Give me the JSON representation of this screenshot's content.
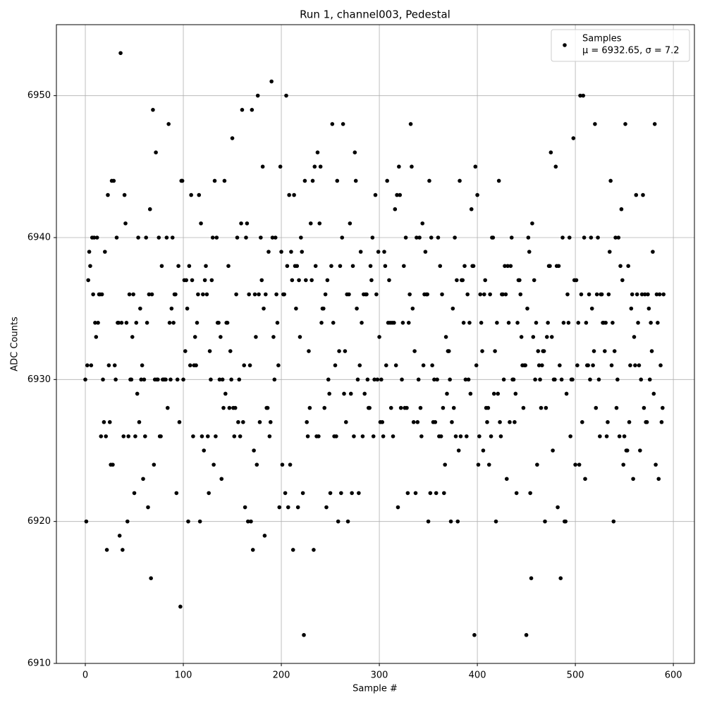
{
  "chart_data": {
    "type": "scatter",
    "title": "Run 1, channel003, Pedestal",
    "x_label": "Sample #",
    "y_label": "ADC Counts",
    "legend_stats": "μ = 6932.65, σ = 7.2",
    "legend_position": "upper right",
    "grid": true,
    "xlim": [
      -29.5,
      621.5
    ],
    "ylim": [
      6910,
      6955
    ],
    "xticks": [
      0,
      100,
      200,
      300,
      400,
      500,
      600
    ],
    "yticks": [
      6910,
      6920,
      6930,
      6940,
      6950
    ],
    "x": [
      0,
      1,
      2,
      3,
      4,
      5,
      6,
      7,
      8,
      9,
      10,
      11,
      12,
      13,
      14,
      15,
      16,
      17,
      18,
      19,
      20,
      21,
      22,
      23,
      24,
      25,
      26,
      27,
      28,
      29,
      30,
      31,
      32,
      33,
      34,
      35,
      36,
      37,
      38,
      39,
      40,
      41,
      42,
      43,
      44,
      45,
      46,
      47,
      48,
      49,
      50,
      51,
      52,
      53,
      54,
      55,
      56,
      57,
      58,
      59,
      60,
      61,
      62,
      63,
      64,
      65,
      66,
      67,
      68,
      69,
      70,
      71,
      72,
      73,
      74,
      75,
      76,
      77,
      78,
      79,
      80,
      81,
      82,
      83,
      84,
      85,
      86,
      87,
      88,
      89,
      90,
      91,
      92,
      93,
      94,
      95,
      96,
      97,
      98,
      99,
      100,
      101,
      102,
      103,
      104,
      105,
      106,
      107,
      108,
      109,
      110,
      111,
      112,
      113,
      114,
      115,
      116,
      117,
      118,
      119,
      120,
      121,
      122,
      123,
      124,
      125,
      126,
      127,
      128,
      129,
      130,
      131,
      132,
      133,
      134,
      135,
      136,
      137,
      138,
      139,
      140,
      141,
      142,
      143,
      144,
      145,
      146,
      147,
      148,
      149,
      150,
      151,
      152,
      153,
      154,
      155,
      156,
      157,
      158,
      159,
      160,
      161,
      162,
      163,
      164,
      165,
      166,
      167,
      168,
      169,
      170,
      171,
      172,
      173,
      174,
      175,
      176,
      177,
      178,
      179,
      180,
      181,
      182,
      183,
      184,
      185,
      186,
      187,
      188,
      189,
      190,
      191,
      192,
      193,
      194,
      195,
      196,
      197,
      198,
      199,
      200,
      201,
      202,
      203,
      204,
      205,
      206,
      207,
      208,
      209,
      210,
      211,
      212,
      213,
      214,
      215,
      216,
      217,
      218,
      219,
      220,
      221,
      222,
      223,
      224,
      225,
      226,
      227,
      228,
      229,
      230,
      231,
      232,
      233,
      234,
      235,
      236,
      237,
      238,
      239,
      240,
      241,
      242,
      243,
      244,
      245,
      246,
      247,
      248,
      249,
      250,
      251,
      252,
      253,
      254,
      255,
      256,
      257,
      258,
      259,
      260,
      261,
      262,
      263,
      264,
      265,
      266,
      267,
      268,
      269,
      270,
      271,
      272,
      273,
      274,
      275,
      276,
      277,
      278,
      279,
      280,
      281,
      282,
      283,
      284,
      285,
      286,
      287,
      288,
      289,
      290,
      291,
      292,
      293,
      294,
      295,
      296,
      297,
      298,
      299,
      300,
      301,
      302,
      303,
      304,
      305,
      306,
      307,
      308,
      309,
      310,
      311,
      312,
      313,
      314,
      315,
      316,
      317,
      318,
      319,
      320,
      321,
      322,
      323,
      324,
      325,
      326,
      327,
      328,
      329,
      330,
      331,
      332,
      333,
      334,
      335,
      336,
      337,
      338,
      339,
      340,
      341,
      342,
      343,
      344,
      345,
      346,
      347,
      348,
      349,
      350,
      351,
      352,
      353,
      354,
      355,
      356,
      357,
      358,
      359,
      360,
      361,
      362,
      363,
      364,
      365,
      366,
      367,
      368,
      369,
      370,
      371,
      372,
      373,
      374,
      375,
      376,
      377,
      378,
      379,
      380,
      381,
      382,
      383,
      384,
      385,
      386,
      387,
      388,
      389,
      390,
      391,
      392,
      393,
      394,
      395,
      396,
      397,
      398,
      399,
      400,
      401,
      402,
      403,
      404,
      405,
      406,
      407,
      408,
      409,
      410,
      411,
      412,
      413,
      414,
      415,
      416,
      417,
      418,
      419,
      420,
      421,
      422,
      423,
      424,
      425,
      426,
      427,
      428,
      429,
      430,
      431,
      432,
      433,
      434,
      435,
      436,
      437,
      438,
      439,
      440,
      441,
      442,
      443,
      444,
      445,
      446,
      447,
      448,
      449,
      450,
      451,
      452,
      453,
      454,
      455,
      456,
      457,
      458,
      459,
      460,
      461,
      462,
      463,
      464,
      465,
      466,
      467,
      468,
      469,
      470,
      471,
      472,
      473,
      474,
      475,
      476,
      477,
      478,
      479,
      480,
      481,
      482,
      483,
      484,
      485,
      486,
      487,
      488,
      489,
      490,
      491,
      492,
      493,
      494,
      495,
      496,
      497,
      498,
      499,
      500,
      501,
      502,
      503,
      504,
      505,
      506,
      507,
      508,
      509,
      510,
      511,
      512,
      513,
      514,
      515,
      516,
      517,
      518,
      519,
      520,
      521,
      522,
      523,
      524,
      525,
      526,
      527,
      528,
      529,
      530,
      531,
      532,
      533,
      534,
      535,
      536,
      537,
      538,
      539,
      540,
      541,
      542,
      543,
      544,
      545,
      546,
      547,
      548,
      549,
      550,
      551,
      552,
      553,
      554,
      555,
      556,
      557,
      558,
      559,
      560,
      561,
      562,
      563,
      564,
      565,
      566,
      567,
      568,
      569,
      570,
      571,
      572,
      573,
      574,
      575,
      576,
      577,
      578,
      579,
      580,
      581,
      582,
      583,
      584,
      585,
      586,
      587,
      588,
      589,
      590
    ],
    "series": [
      {
        "name": "Samples",
        "color": "#000000",
        "values": [
          6930,
          6920,
          6931,
          6937,
          6939,
          6938,
          6931,
          6940,
          6936,
          6940,
          6934,
          6933,
          6940,
          6934,
          6936,
          6936,
          6926,
          6936,
          6930,
          6927,
          6939,
          6926,
          6918,
          6943,
          6931,
          6927,
          6924,
          6944,
          6924,
          6944,
          6931,
          6930,
          6940,
          6934,
          6934,
          6919,
          6953,
          6934,
          6918,
          6926,
          6943,
          6941,
          6934,
          6920,
          6926,
          6936,
          6930,
          6930,
          6933,
          6936,
          6922,
          6926,
          6934,
          6929,
          6940,
          6927,
          6935,
          6930,
          6931,
          6923,
          6930,
          6926,
          6940,
          6934,
          6921,
          6936,
          6942,
          6916,
          6936,
          6949,
          6924,
          6930,
          6946,
          6930,
          6930,
          6940,
          6926,
          6926,
          6938,
          6930,
          6930,
          6930,
          6930,
          6940,
          6928,
          6948,
          6934,
          6930,
          6935,
          6940,
          6934,
          6936,
          6936,
          6922,
          6930,
          6938,
          6927,
          6914,
          6944,
          6944,
          6930,
          6937,
          6932,
          6937,
          6935,
          6920,
          6938,
          6931,
          6943,
          6937,
          6926,
          6931,
          6933,
          6931,
          6934,
          6936,
          6943,
          6920,
          6941,
          6926,
          6936,
          6925,
          6937,
          6938,
          6936,
          6926,
          6922,
          6932,
          6930,
          6937,
          6940,
          6924,
          6944,
          6926,
          6940,
          6934,
          6934,
          6930,
          6933,
          6923,
          6930,
          6928,
          6944,
          6929,
          6934,
          6934,
          6938,
          6928,
          6932,
          6930,
          6947,
          6928,
          6926,
          6928,
          6936,
          6940,
          6927,
          6930,
          6926,
          6941,
          6949,
          6927,
          6931,
          6921,
          6940,
          6941,
          6920,
          6936,
          6931,
          6920,
          6949,
          6918,
          6925,
          6936,
          6933,
          6924,
          6950,
          6936,
          6927,
          6940,
          6937,
          6945,
          6935,
          6919,
          6936,
          6928,
          6928,
          6939,
          6926,
          6927,
          6951,
          6940,
          6933,
          6930,
          6940,
          6936,
          6934,
          6931,
          6921,
          6945,
          6939,
          6924,
          6936,
          6936,
          6922,
          6950,
          6938,
          6921,
          6943,
          6924,
          6939,
          6937,
          6918,
          6943,
          6938,
          6935,
          6938,
          6921,
          6937,
          6933,
          6940,
          6939,
          6922,
          6912,
          6944,
          6937,
          6927,
          6926,
          6932,
          6928,
          6941,
          6937,
          6944,
          6918,
          6945,
          6938,
          6926,
          6946,
          6926,
          6941,
          6945,
          6934,
          6935,
          6935,
          6928,
          6936,
          6921,
          6937,
          6930,
          6929,
          6922,
          6938,
          6948,
          6934,
          6926,
          6931,
          6926,
          6944,
          6920,
          6932,
          6938,
          6922,
          6940,
          6948,
          6929,
          6932,
          6927,
          6936,
          6920,
          6936,
          6941,
          6929,
          6922,
          6938,
          6926,
          6946,
          6944,
          6935,
          6930,
          6922,
          6931,
          6939,
          6934,
          6926,
          6936,
          6929,
          6936,
          6936,
          6930,
          6928,
          6928,
          6938,
          6937,
          6940,
          6926,
          6930,
          6943,
          6936,
          6930,
          6939,
          6933,
          6927,
          6930,
          6927,
          6926,
          6939,
          6938,
          6931,
          6944,
          6934,
          6937,
          6934,
          6928,
          6934,
          6926,
          6934,
          6942,
          6931,
          6943,
          6921,
          6945,
          6943,
          6928,
          6930,
          6934,
          6938,
          6928,
          6940,
          6928,
          6922,
          6934,
          6936,
          6948,
          6945,
          6935,
          6927,
          6932,
          6922,
          6940,
          6927,
          6930,
          6940,
          6928,
          6926,
          6941,
          6931,
          6936,
          6939,
          6936,
          6936,
          6920,
          6944,
          6922,
          6940,
          6931,
          6927,
          6930,
          6927,
          6922,
          6930,
          6940,
          6926,
          6938,
          6926,
          6936,
          6928,
          6922,
          6924,
          6933,
          6929,
          6932,
          6932,
          6930,
          6920,
          6927,
          6935,
          6928,
          6940,
          6926,
          6937,
          6920,
          6925,
          6944,
          6926,
          6937,
          6937,
          6934,
          6938,
          6930,
          6926,
          6936,
          6930,
          6934,
          6929,
          6942,
          6938,
          6938,
          6912,
          6945,
          6931,
          6943,
          6924,
          6926,
          6936,
          6934,
          6932,
          6925,
          6936,
          6937,
          6928,
          6927,
          6928,
          6924,
          6936,
          6926,
          6940,
          6940,
          6929,
          6932,
          6920,
          6934,
          6929,
          6944,
          6927,
          6926,
          6936,
          6936,
          6930,
          6938,
          6936,
          6923,
          6938,
          6934,
          6927,
          6938,
          6940,
          6930,
          6930,
          6927,
          6929,
          6922,
          6934,
          6937,
          6937,
          6936,
          6933,
          6931,
          6928,
          6931,
          6931,
          6912,
          6935,
          6940,
          6939,
          6922,
          6916,
          6941,
          6933,
          6937,
          6930,
          6934,
          6924,
          6932,
          6931,
          6930,
          6928,
          6931,
          6932,
          6932,
          6920,
          6928,
          6933,
          6934,
          6938,
          6938,
          6946,
          6933,
          6925,
          6930,
          6930,
          6945,
          6938,
          6921,
          6938,
          6931,
          6916,
          6930,
          6940,
          6934,
          6920,
          6920,
          6929,
          6936,
          6934,
          6940,
          6926,
          6930,
          6930,
          6947,
          6937,
          6924,
          6937,
          6931,
          6934,
          6924,
          6950,
          6936,
          6927,
          6950,
          6940,
          6923,
          6934,
          6931,
          6931,
          6936,
          6930,
          6940,
          6935,
          6931,
          6932,
          6948,
          6928,
          6936,
          6940,
          6930,
          6926,
          6936,
          6936,
          6934,
          6934,
          6932,
          6934,
          6926,
          6927,
          6936,
          6939,
          6944,
          6931,
          6934,
          6920,
          6932,
          6940,
          6928,
          6930,
          6940,
          6926,
          6938,
          6942,
          6937,
          6924,
          6926,
          6948,
          6925,
          6925,
          6938,
          6927,
          6931,
          6935,
          6936,
          6923,
          6933,
          6931,
          6943,
          6936,
          6934,
          6931,
          6925,
          6930,
          6936,
          6943,
          6928,
          6936,
          6927,
          6927,
          6936,
          6935,
          6930,
          6934,
          6932,
          6939,
          6929,
          6948,
          6924,
          6936,
          6934,
          6923,
          6936,
          6931,
          6927,
          6928,
          6936
        ]
      }
    ]
  }
}
